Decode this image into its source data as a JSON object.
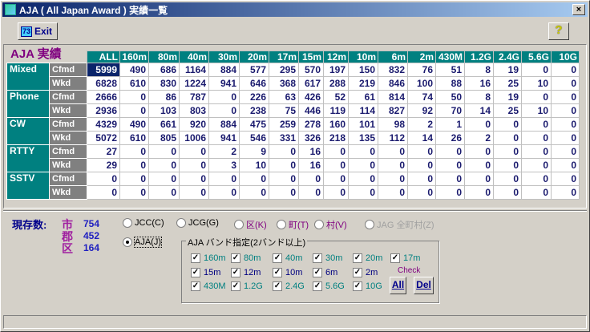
{
  "window": {
    "title": "AJA ( All Japan Award ) 実績一覧",
    "close": "×"
  },
  "toolbar": {
    "exit_icon_text": "73",
    "exit_label": "Exit",
    "help_label": "?"
  },
  "table": {
    "title": "AJA 実績",
    "columns": [
      "ALL",
      "160m",
      "80m",
      "40m",
      "30m",
      "20m",
      "17m",
      "15m",
      "12m",
      "10m",
      "6m",
      "2m",
      "430M",
      "1.2G",
      "2.4G",
      "5.6G",
      "10G"
    ],
    "modes": [
      {
        "name": "Mixed",
        "rows": [
          {
            "label": "Cfmd",
            "values": [
              5999,
              490,
              686,
              1164,
              884,
              577,
              295,
              570,
              197,
              150,
              832,
              76,
              51,
              8,
              19,
              0,
              0
            ]
          },
          {
            "label": "Wkd",
            "values": [
              6828,
              610,
              830,
              1224,
              941,
              646,
              368,
              617,
              288,
              219,
              846,
              100,
              88,
              16,
              25,
              10,
              0
            ]
          }
        ]
      },
      {
        "name": "Phone",
        "rows": [
          {
            "label": "Cfmd",
            "values": [
              2666,
              0,
              86,
              787,
              0,
              226,
              63,
              426,
              52,
              61,
              814,
              74,
              50,
              8,
              19,
              0,
              0
            ]
          },
          {
            "label": "Wkd",
            "values": [
              2936,
              0,
              103,
              803,
              0,
              238,
              75,
              446,
              119,
              114,
              827,
              92,
              70,
              14,
              25,
              10,
              0
            ]
          }
        ]
      },
      {
        "name": "CW",
        "rows": [
          {
            "label": "Cfmd",
            "values": [
              4329,
              490,
              661,
              920,
              884,
              475,
              259,
              278,
              160,
              101,
              98,
              2,
              1,
              0,
              0,
              0,
              0
            ]
          },
          {
            "label": "Wkd",
            "values": [
              5072,
              610,
              805,
              1006,
              941,
              546,
              331,
              326,
              218,
              135,
              112,
              14,
              26,
              2,
              0,
              0,
              0
            ]
          }
        ]
      },
      {
        "name": "RTTY",
        "rows": [
          {
            "label": "Cfmd",
            "values": [
              27,
              0,
              0,
              0,
              2,
              9,
              0,
              16,
              0,
              0,
              0,
              0,
              0,
              0,
              0,
              0,
              0
            ]
          },
          {
            "label": "Wkd",
            "values": [
              29,
              0,
              0,
              0,
              3,
              10,
              0,
              16,
              0,
              0,
              0,
              0,
              0,
              0,
              0,
              0,
              0
            ]
          }
        ]
      },
      {
        "name": "SSTV",
        "rows": [
          {
            "label": "Cfmd",
            "values": [
              0,
              0,
              0,
              0,
              0,
              0,
              0,
              0,
              0,
              0,
              0,
              0,
              0,
              0,
              0,
              0,
              0
            ]
          },
          {
            "label": "Wkd",
            "values": [
              0,
              0,
              0,
              0,
              0,
              0,
              0,
              0,
              0,
              0,
              0,
              0,
              0,
              0,
              0,
              0,
              0
            ]
          }
        ]
      }
    ]
  },
  "existing": {
    "label": "現存数:",
    "items": [
      {
        "kind": "市",
        "count": "754"
      },
      {
        "kind": "郡",
        "count": "452"
      },
      {
        "kind": "区",
        "count": "164"
      }
    ]
  },
  "award_radios": [
    {
      "label": "JCC(C)",
      "checked": false,
      "color": "#000000"
    },
    {
      "label": "JCG(G)",
      "checked": false,
      "color": "#000000"
    },
    {
      "label": "区(K)",
      "checked": false,
      "color": "#800080"
    },
    {
      "label": "町(T)",
      "checked": false,
      "color": "#800080"
    },
    {
      "label": "村(V)",
      "checked": false,
      "color": "#800080"
    },
    {
      "label": "JAG 全町村(Z)",
      "checked": false,
      "color": "#a0a0a0"
    },
    {
      "label": "AJA(J)",
      "checked": true,
      "color": "#000000"
    }
  ],
  "band_group": {
    "title": "AJA バンド指定(2バンド以上)",
    "check_label": "Check",
    "all_label": "All",
    "del_label": "Del",
    "bands": [
      {
        "label": "160m",
        "checked": true,
        "color": "#008080"
      },
      {
        "label": "80m",
        "checked": true,
        "color": "#008080"
      },
      {
        "label": "40m",
        "checked": true,
        "color": "#008080"
      },
      {
        "label": "30m",
        "checked": true,
        "color": "#008080"
      },
      {
        "label": "20m",
        "checked": true,
        "color": "#008080"
      },
      {
        "label": "17m",
        "checked": true,
        "color": "#008080"
      },
      {
        "label": "15m",
        "checked": true,
        "color": "#000080"
      },
      {
        "label": "12m",
        "checked": true,
        "color": "#000080"
      },
      {
        "label": "10m",
        "checked": true,
        "color": "#000080"
      },
      {
        "label": "6m",
        "checked": true,
        "color": "#000080"
      },
      {
        "label": "2m",
        "checked": true,
        "color": "#000080"
      },
      {
        "label": "430M",
        "checked": true,
        "color": "#008080"
      },
      {
        "label": "1.2G",
        "checked": true,
        "color": "#008080"
      },
      {
        "label": "2.4G",
        "checked": true,
        "color": "#008080"
      },
      {
        "label": "5.6G",
        "checked": true,
        "color": "#008080"
      },
      {
        "label": "10G",
        "checked": true,
        "color": "#008080"
      }
    ]
  },
  "colors": {
    "header": "#008080",
    "value_text": "#1a1a6e",
    "selected": "#0a246a",
    "mode_label": "#008080",
    "sub_label": "#808080"
  }
}
